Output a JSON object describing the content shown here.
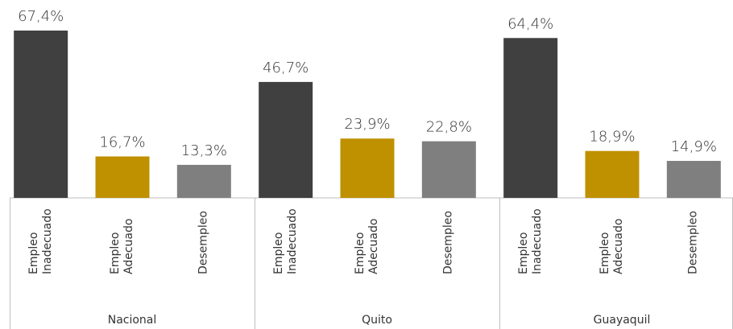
{
  "chart_data": {
    "type": "bar",
    "groups": [
      {
        "name": "Nacional",
        "categories": [
          "Empleo Inadecuado",
          "Empleo Adecuado",
          "Desempleo"
        ],
        "values": [
          67.4,
          16.7,
          13.3
        ],
        "value_labels": [
          "67,4%",
          "16,7%",
          "13,3%"
        ]
      },
      {
        "name": "Quito",
        "categories": [
          "Empleo Inadecuado",
          "Empleo Adecuado",
          "Desempleo"
        ],
        "values": [
          46.7,
          23.9,
          22.8
        ],
        "value_labels": [
          "46,7%",
          "23,9%",
          "22,8%"
        ]
      },
      {
        "name": "Guayaquil",
        "categories": [
          "Empleo Inadecuado",
          "Empleo Adecuado",
          "Desempleo"
        ],
        "values": [
          64.4,
          18.9,
          14.9
        ],
        "value_labels": [
          "64,4%",
          "18,9%",
          "14,9%"
        ]
      }
    ],
    "colors": [
      "#404040",
      "#bf9000",
      "#7f7f7f"
    ]
  }
}
